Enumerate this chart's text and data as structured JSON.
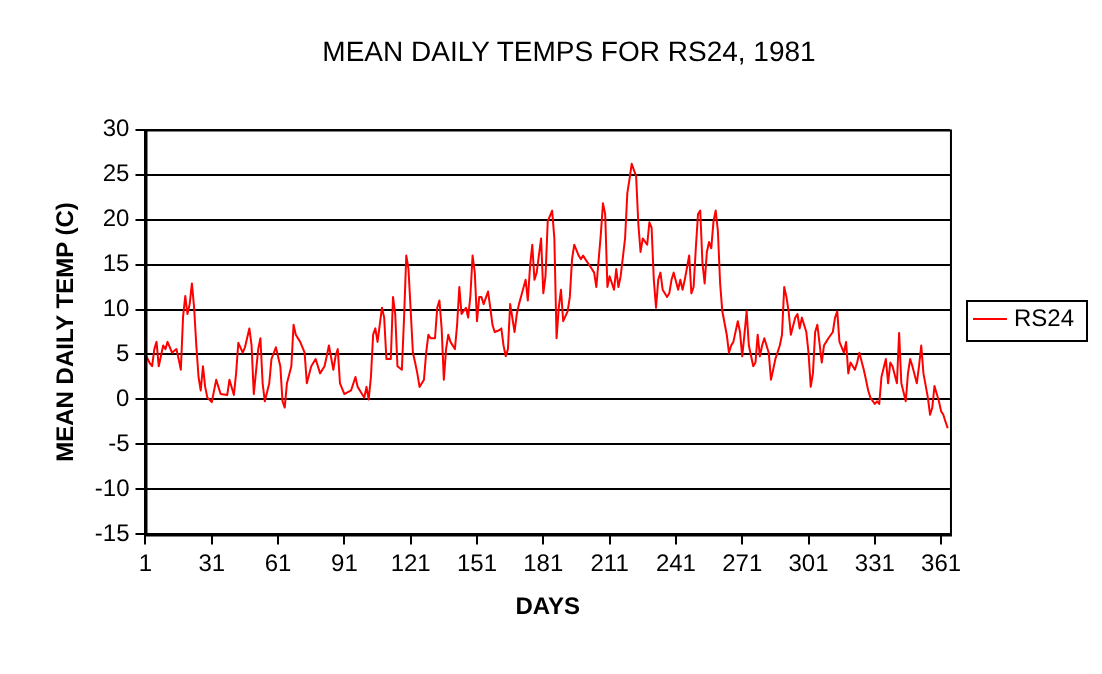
{
  "chart_data": {
    "type": "line",
    "title": "MEAN DAILY TEMPS FOR RS24, 1981",
    "xlabel": "DAYS",
    "ylabel": "MEAN DAILY TEMP (C)",
    "xlim": [
      1,
      365
    ],
    "xticks": [
      1,
      31,
      61,
      91,
      121,
      151,
      181,
      211,
      241,
      271,
      301,
      331,
      361
    ],
    "ylim": [
      -15,
      30
    ],
    "yticks": [
      -15,
      -10,
      -5,
      0,
      5,
      10,
      15,
      20,
      25,
      30
    ],
    "grid": "y",
    "legend": "right",
    "marker": "none",
    "line_style": "solid",
    "series": [
      {
        "name": "RS24",
        "color": "#ff0000",
        "x": [
          1,
          3,
          4,
          5,
          6,
          7,
          9,
          10,
          11,
          13,
          15,
          16,
          17,
          18,
          19,
          20,
          21,
          22,
          23,
          24,
          25,
          26,
          27,
          28,
          29,
          31,
          33,
          34,
          35,
          38,
          39,
          41,
          42,
          43,
          45,
          46,
          48,
          49,
          50,
          52,
          53,
          54,
          55,
          57,
          58,
          60,
          62,
          63,
          64,
          65,
          67,
          68,
          69,
          71,
          73,
          74,
          76,
          78,
          80,
          82,
          83,
          84,
          86,
          87,
          88,
          89,
          91,
          94,
          96,
          97,
          98,
          100,
          101,
          102,
          103,
          104,
          105,
          106,
          108,
          109,
          110,
          112,
          113,
          114,
          115,
          117,
          118,
          119,
          120,
          122,
          123,
          124,
          125,
          127,
          128,
          129,
          130,
          132,
          133,
          134,
          135,
          136,
          137,
          138,
          139,
          141,
          142,
          143,
          144,
          146,
          147,
          148,
          149,
          150,
          151,
          152,
          153,
          154,
          156,
          157,
          158,
          159,
          161,
          162,
          163,
          164,
          165,
          166,
          168,
          169,
          170,
          171,
          173,
          174,
          175,
          176,
          177,
          178,
          180,
          181,
          182,
          183,
          185,
          186,
          187,
          188,
          189,
          190,
          192,
          193,
          194,
          195,
          197,
          198,
          199,
          200,
          203,
          204,
          205,
          207,
          208,
          209,
          210,
          211,
          213,
          214,
          215,
          216,
          218,
          219,
          220,
          221,
          223,
          224,
          225,
          226,
          228,
          229,
          230,
          231,
          232,
          233,
          234,
          235,
          237,
          238,
          239,
          240,
          242,
          243,
          244,
          245,
          247,
          248,
          249,
          250,
          251,
          252,
          253,
          254,
          255,
          256,
          257,
          258,
          259,
          260,
          261,
          262,
          264,
          265,
          266,
          267,
          269,
          270,
          271,
          272,
          273,
          274,
          276,
          277,
          278,
          279,
          280,
          281,
          283,
          284,
          285,
          286,
          288,
          289,
          290,
          291,
          292,
          293,
          295,
          296,
          297,
          298,
          300,
          301,
          302,
          303,
          304,
          305,
          307,
          308,
          309,
          310,
          312,
          313,
          314,
          315,
          317,
          318,
          319,
          320,
          322,
          323,
          324,
          326,
          327,
          328,
          329,
          331,
          332,
          333,
          334,
          336,
          337,
          338,
          339,
          341,
          342,
          343,
          345,
          346,
          347,
          348,
          350,
          351,
          352,
          353,
          355,
          356,
          357,
          358,
          360,
          361,
          362,
          363,
          364
        ],
        "values": [
          5,
          4,
          3.7,
          5.6,
          6.4,
          3.7,
          6,
          5.6,
          6.4,
          5.2,
          5.6,
          4.5,
          3.3,
          9.2,
          11.5,
          9.5,
          10.6,
          12.9,
          10.2,
          6,
          2.5,
          1,
          3.7,
          1.4,
          0.2,
          -0.3,
          2.2,
          1.4,
          0.6,
          0.5,
          2.2,
          0.5,
          2.9,
          6.3,
          5.2,
          5.8,
          7.9,
          6,
          0.6,
          5.6,
          6.8,
          1.8,
          -0.2,
          1.8,
          4.5,
          5.8,
          3.7,
          -0.2,
          -0.9,
          1.8,
          3.7,
          8.3,
          7.2,
          6.4,
          5.2,
          1.8,
          3.7,
          4.5,
          2.9,
          3.7,
          4.8,
          6,
          3.3,
          4.8,
          5.6,
          1.8,
          0.6,
          1,
          2.5,
          1.4,
          1,
          0.2,
          1.4,
          0,
          2.5,
          7.2,
          7.9,
          6.4,
          10.2,
          9.1,
          4.5,
          4.5,
          11.4,
          9.5,
          3.7,
          3.3,
          9.1,
          16,
          14.5,
          5.2,
          4.1,
          2.9,
          1.4,
          2.2,
          5.2,
          7.2,
          6.8,
          6.8,
          10.2,
          11,
          7.9,
          2.2,
          5.6,
          7.2,
          6.4,
          5.6,
          8.3,
          12.5,
          9.5,
          10.2,
          9.1,
          11.5,
          16,
          14.1,
          8.7,
          11.4,
          11.4,
          10.6,
          12,
          10.2,
          8.3,
          7.5,
          7.7,
          7.9,
          6,
          4.8,
          5.6,
          10.6,
          7.5,
          9.5,
          10.6,
          11.5,
          13.3,
          11,
          14.8,
          17.2,
          13.3,
          14.1,
          17.9,
          11.8,
          13.7,
          19.8,
          21,
          17.9,
          6.8,
          10.2,
          12.2,
          8.7,
          9.8,
          11.4,
          15.6,
          17.2,
          16,
          15.6,
          16,
          15.6,
          14.5,
          14.1,
          12.5,
          18.3,
          21.8,
          20.6,
          12.5,
          13.7,
          12.2,
          14.5,
          12.5,
          13.7,
          17.9,
          22.9,
          24.5,
          26.2,
          24.8,
          19.5,
          16.4,
          17.9,
          17.2,
          19.7,
          19.1,
          13.3,
          10.2,
          13.3,
          14.1,
          12.2,
          11.4,
          11.8,
          13.3,
          14.1,
          12.2,
          13.3,
          12.2,
          13.3,
          16,
          11.8,
          12.5,
          16.8,
          20.6,
          21,
          15.2,
          12.9,
          16.4,
          17.5,
          16.8,
          19.8,
          21,
          18.7,
          12.9,
          9.8,
          7.2,
          5.2,
          6,
          6.4,
          8.7,
          7.5,
          4.8,
          7.2,
          9.8,
          6,
          3.7,
          4.1,
          7.2,
          4.8,
          6,
          6.8,
          5.2,
          2.2,
          3.3,
          4.5,
          6,
          7.2,
          12.5,
          11.4,
          9.8,
          7.2,
          9.1,
          9.5,
          7.9,
          9.1,
          7.5,
          5.2,
          1.4,
          2.9,
          7.5,
          8.3,
          4.1,
          6,
          6.4,
          6.8,
          7.5,
          9.1,
          9.8,
          6.4,
          5.2,
          6.4,
          2.9,
          4.1,
          3.3,
          4.1,
          5.2,
          3.3,
          2.2,
          1,
          0.2,
          -0.5,
          -0.2,
          -0.5,
          2.5,
          4.5,
          1.8,
          4.1,
          3.7,
          1.8,
          7.4,
          1.8,
          -0.2,
          2.9,
          4.5,
          3.7,
          1.8,
          3.7,
          6,
          2.9,
          0.2,
          -1.7,
          -0.9,
          1.5,
          -0.2,
          -1.3,
          -1.7,
          -2.5,
          -3.2
        ]
      }
    ]
  }
}
